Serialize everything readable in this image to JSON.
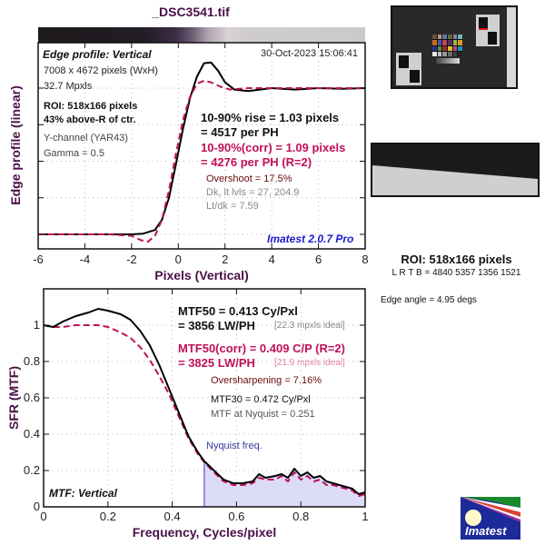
{
  "title": "_DSC3541.tif",
  "edge_plot": {
    "label": "Edge profile: Vertical",
    "date": "30-Oct-2023 15:06:41",
    "image_size": "7008 x 4672 pixels (WxH)",
    "mpxls": "32.7 Mpxls",
    "roi": "ROI: 518x166 pixels",
    "roi_pos": "43% above-R of ctr.",
    "channel": "Y-channel  (YAR43)",
    "gamma": "Gamma = 0.5",
    "rise_line1": "10-90% rise = 1.03 pixels",
    "rise_line2": "= 4517 per PH",
    "corr_line1": "10-90%(corr) = 1.09 pixels",
    "corr_line2": "= 4276 per PH  (R=2)",
    "overshoot": "Overshoot = 17.5%",
    "levels": "Dk, lt lvls = 27, 204.9",
    "ltdk": "Lt/dk = 7.59",
    "version": "Imatest 2.0.7 Pro"
  },
  "mtf_plot": {
    "label": "MTF: Vertical",
    "mtf50_line1": "MTF50 = 0.413 Cy/Pxl",
    "mtf50_line2": "= 3856 LW/PH",
    "mtf50_ideal": "[22.3 mpxls ideal]",
    "corr_line1": "MTF50(corr) = 0.409 C/P  (R=2)",
    "corr_line2": "= 3825 LW/PH",
    "corr_ideal": "[21.9 mpxls ideal]",
    "oversharpening": "Oversharpening = 7.16%",
    "mtf30": "MTF30 = 0.472 Cy/Pxl",
    "mtf_nyquist": "MTF at Nyquist = 0.251",
    "nyquist_label": "Nyquist freq."
  },
  "side_panel": {
    "roi_title": "ROI: 518x166 pixels",
    "lrtb": "L R  T B = 4840 5357  1356 1521",
    "edge_angle": "Edge angle = 4.95 degs",
    "logo_text": "Imatest"
  },
  "colors": {
    "title": "#4a1048",
    "measured": "#000000",
    "corrected": "#c0105a",
    "overshoot_text": "#6a0a0a",
    "version_text": "#1a1acc",
    "nyquist_fill": "#dcdcf8",
    "nyquist_line": "#9090e0",
    "grid": "#bbbbbb"
  },
  "chart_data": [
    {
      "type": "line",
      "title": "Edge profile: Vertical",
      "xlabel": "Pixels (Vertical)",
      "ylabel": "Edge profile (linear)",
      "xlim": [
        -6,
        8
      ],
      "ylim": [
        -0.1,
        1.3
      ],
      "xticks": [
        "-6",
        "-4",
        "-2",
        "0",
        "2",
        "4",
        "6",
        "8"
      ],
      "grid": true,
      "series": [
        {
          "name": "measured",
          "style": "solid",
          "x": [
            -6,
            -3,
            -2,
            -1.5,
            -1,
            -0.7,
            -0.4,
            -0.1,
            0.2,
            0.5,
            0.8,
            1.1,
            1.4,
            1.7,
            2.0,
            2.4,
            3,
            4,
            5,
            6,
            7,
            8
          ],
          "y": [
            0,
            0,
            0,
            0.005,
            0.03,
            0.1,
            0.25,
            0.48,
            0.72,
            0.93,
            1.08,
            1.17,
            1.175,
            1.12,
            1.04,
            0.99,
            0.98,
            1.0,
            0.99,
            1.0,
            0.995,
            1.0
          ]
        },
        {
          "name": "corrected",
          "style": "dashed",
          "x": [
            -6,
            -3,
            -2,
            -1.6,
            -1.3,
            -1.0,
            -0.7,
            -0.4,
            -0.1,
            0.2,
            0.5,
            0.8,
            1.1,
            1.4,
            1.8,
            2.2,
            3,
            4,
            5,
            6,
            7,
            8
          ],
          "y": [
            0,
            0,
            -0.01,
            -0.04,
            -0.05,
            -0.01,
            0.1,
            0.3,
            0.55,
            0.78,
            0.94,
            1.03,
            1.05,
            1.04,
            1.01,
            0.99,
            1.0,
            1.0,
            1.0,
            1.0,
            1.0,
            1.0
          ]
        }
      ]
    },
    {
      "type": "line",
      "title": "MTF: Vertical",
      "xlabel": "Frequency, Cycles/pixel",
      "ylabel": "SFR (MTF)",
      "xlim": [
        0,
        1
      ],
      "ylim": [
        0,
        1.2
      ],
      "xticks": [
        "0",
        "0.2",
        "0.4",
        "0.6",
        "0.8",
        "1"
      ],
      "yticks": [
        "0",
        "0.2",
        "0.4",
        "0.6",
        "0.8",
        "1"
      ],
      "grid": true,
      "nyquist": 0.5,
      "series": [
        {
          "name": "measured",
          "style": "solid",
          "x": [
            0,
            0.03,
            0.06,
            0.1,
            0.14,
            0.17,
            0.2,
            0.24,
            0.27,
            0.3,
            0.33,
            0.36,
            0.39,
            0.42,
            0.45,
            0.48,
            0.5,
            0.53,
            0.56,
            0.59,
            0.62,
            0.65,
            0.67,
            0.69,
            0.72,
            0.74,
            0.76,
            0.78,
            0.8,
            0.82,
            0.84,
            0.86,
            0.88,
            0.9,
            0.92,
            0.94,
            0.96,
            0.98,
            1.0
          ],
          "y": [
            1.0,
            0.99,
            1.02,
            1.05,
            1.07,
            1.09,
            1.08,
            1.06,
            1.03,
            0.97,
            0.89,
            0.78,
            0.65,
            0.52,
            0.39,
            0.3,
            0.251,
            0.2,
            0.15,
            0.13,
            0.13,
            0.14,
            0.18,
            0.16,
            0.17,
            0.18,
            0.16,
            0.21,
            0.17,
            0.19,
            0.16,
            0.17,
            0.14,
            0.13,
            0.12,
            0.11,
            0.1,
            0.07,
            0.08
          ]
        },
        {
          "name": "corrected",
          "style": "dashed",
          "x": [
            0,
            0.03,
            0.06,
            0.1,
            0.14,
            0.17,
            0.2,
            0.24,
            0.27,
            0.3,
            0.33,
            0.36,
            0.39,
            0.42,
            0.45,
            0.48,
            0.5,
            0.53,
            0.56,
            0.59,
            0.62,
            0.65,
            0.67,
            0.69,
            0.72,
            0.74,
            0.76,
            0.78,
            0.8,
            0.82,
            0.84,
            0.86,
            0.88,
            0.9,
            0.92,
            0.94,
            0.96,
            0.98,
            1.0
          ],
          "y": [
            1.0,
            0.99,
            0.99,
            1.0,
            1.0,
            1.0,
            0.99,
            0.96,
            0.93,
            0.88,
            0.81,
            0.72,
            0.62,
            0.5,
            0.38,
            0.29,
            0.245,
            0.19,
            0.14,
            0.12,
            0.12,
            0.13,
            0.16,
            0.15,
            0.15,
            0.17,
            0.14,
            0.19,
            0.15,
            0.17,
            0.14,
            0.15,
            0.12,
            0.12,
            0.11,
            0.1,
            0.09,
            0.06,
            0.07
          ]
        }
      ]
    }
  ]
}
